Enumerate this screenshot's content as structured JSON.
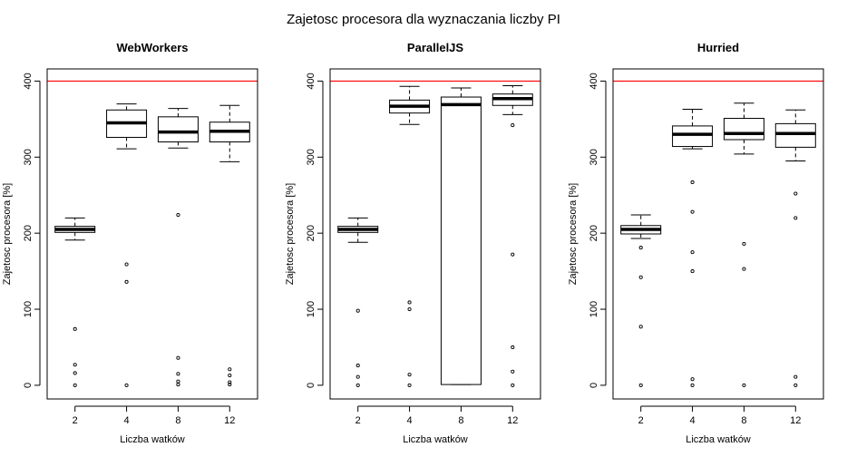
{
  "figure": {
    "title": "Zajetosc procesora dla wyznaczania liczby PI"
  },
  "chart_data": [
    {
      "type": "box",
      "title": "WebWorkers",
      "xlabel": "Liczba watków",
      "ylabel": "Zajetosc procesora [%]",
      "categories": [
        "2",
        "4",
        "8",
        "12"
      ],
      "ylim": [
        -18,
        416
      ],
      "yticks": [
        0,
        100,
        200,
        300,
        400
      ],
      "reference_line": {
        "y": 400,
        "color": "#ff0000"
      },
      "boxes": [
        {
          "category": "2",
          "whisker_low": 191,
          "q1": 201,
          "median": 205,
          "q3": 209,
          "whisker_high": 220,
          "outliers": [
            74,
            27,
            16,
            0
          ]
        },
        {
          "category": "4",
          "whisker_low": 311,
          "q1": 326,
          "median": 345,
          "q3": 362,
          "whisker_high": 370,
          "outliers": [
            159,
            136,
            0
          ]
        },
        {
          "category": "8",
          "whisker_low": 312,
          "q1": 320,
          "median": 333,
          "q3": 353,
          "whisker_high": 364,
          "outliers": [
            224,
            36,
            15,
            5,
            1
          ]
        },
        {
          "category": "12",
          "whisker_low": 294,
          "q1": 320,
          "median": 334,
          "q3": 346,
          "whisker_high": 368,
          "outliers": [
            21,
            13,
            4,
            1
          ]
        }
      ]
    },
    {
      "type": "box",
      "title": "ParallelJS",
      "xlabel": "Liczba watków",
      "ylabel": "Zajetosc procesora [%]",
      "categories": [
        "2",
        "4",
        "8",
        "12"
      ],
      "ylim": [
        -18,
        416
      ],
      "yticks": [
        0,
        100,
        200,
        300,
        400
      ],
      "reference_line": {
        "y": 400,
        "color": "#ff0000"
      },
      "boxes": [
        {
          "category": "2",
          "whisker_low": 188,
          "q1": 201,
          "median": 205,
          "q3": 209,
          "whisker_high": 220,
          "outliers": [
            98,
            26,
            11,
            0
          ]
        },
        {
          "category": "4",
          "whisker_low": 343,
          "q1": 358,
          "median": 367,
          "q3": 375,
          "whisker_high": 393,
          "outliers": [
            109,
            100,
            14,
            0
          ]
        },
        {
          "category": "8",
          "whisker_low": 1,
          "q1": 1,
          "median": 369,
          "q3": 379,
          "whisker_high": 391,
          "outliers": []
        },
        {
          "category": "12",
          "whisker_low": 356,
          "q1": 368,
          "median": 377,
          "q3": 383,
          "whisker_high": 394,
          "outliers": [
            342,
            172,
            50,
            18,
            0
          ]
        }
      ]
    },
    {
      "type": "box",
      "title": "Hurried",
      "xlabel": "Liczba watków",
      "ylabel": "Zajetosc procesora [%]",
      "categories": [
        "2",
        "4",
        "8",
        "12"
      ],
      "ylim": [
        -18,
        416
      ],
      "yticks": [
        0,
        100,
        200,
        300,
        400
      ],
      "reference_line": {
        "y": 400,
        "color": "#ff0000"
      },
      "boxes": [
        {
          "category": "2",
          "whisker_low": 193,
          "q1": 199,
          "median": 205,
          "q3": 210,
          "whisker_high": 224,
          "outliers": [
            181,
            142,
            77,
            0
          ]
        },
        {
          "category": "4",
          "whisker_low": 311,
          "q1": 314,
          "median": 330,
          "q3": 341,
          "whisker_high": 363,
          "outliers": [
            267,
            228,
            175,
            150,
            8,
            0
          ]
        },
        {
          "category": "8",
          "whisker_low": 304,
          "q1": 323,
          "median": 331,
          "q3": 351,
          "whisker_high": 371,
          "outliers": [
            186,
            153,
            0
          ]
        },
        {
          "category": "12",
          "whisker_low": 295,
          "q1": 313,
          "median": 331,
          "q3": 344,
          "whisker_high": 362,
          "outliers": [
            252,
            220,
            11,
            0
          ]
        }
      ]
    }
  ]
}
